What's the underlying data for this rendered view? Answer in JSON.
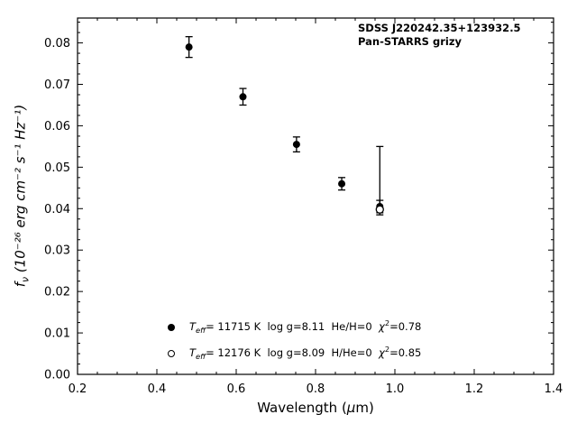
{
  "chart_data": {
    "type": "scatter",
    "title": "",
    "annotations": [
      "SDSS J220242.35+123932.5",
      "Pan-STARRS grizy"
    ],
    "xlabel_parts": {
      "pre": "Wavelength (",
      "italic": "μ",
      "post": "m)"
    },
    "ylabel_parts": {
      "f": "f",
      "sub": "ν",
      "rest": " (10⁻²⁶ erg cm⁻² s⁻¹ Hz⁻¹)"
    },
    "xlim": [
      0.2,
      1.4
    ],
    "ylim": [
      0.0,
      0.086
    ],
    "x_ticks": [
      {
        "v": 0.2,
        "label": "0.2"
      },
      {
        "v": 0.4,
        "label": "0.4"
      },
      {
        "v": 0.6,
        "label": "0.6"
      },
      {
        "v": 0.8,
        "label": "0.8"
      },
      {
        "v": 1.0,
        "label": "1.0"
      },
      {
        "v": 1.2,
        "label": "1.2"
      },
      {
        "v": 1.4,
        "label": "1.4"
      }
    ],
    "y_ticks": [
      {
        "v": 0.0,
        "label": "0.00"
      },
      {
        "v": 0.01,
        "label": "0.01"
      },
      {
        "v": 0.02,
        "label": "0.02"
      },
      {
        "v": 0.03,
        "label": "0.03"
      },
      {
        "v": 0.04,
        "label": "0.04"
      },
      {
        "v": 0.05,
        "label": "0.05"
      },
      {
        "v": 0.06,
        "label": "0.06"
      },
      {
        "v": 0.07,
        "label": "0.07"
      },
      {
        "v": 0.08,
        "label": "0.08"
      }
    ],
    "x_minor_step": 0.05,
    "y_minor_step": 0.0025,
    "series": [
      {
        "name": "photometry-filled-model",
        "marker": "filled-circle",
        "points": [
          {
            "x": 0.481,
            "y": 0.079,
            "err_lo": 0.0025,
            "err_hi": 0.0025
          },
          {
            "x": 0.617,
            "y": 0.067,
            "err_lo": 0.002,
            "err_hi": 0.002
          },
          {
            "x": 0.752,
            "y": 0.0555,
            "err_lo": 0.0018,
            "err_hi": 0.0018
          },
          {
            "x": 0.866,
            "y": 0.046,
            "err_lo": 0.0015,
            "err_hi": 0.0015
          },
          {
            "x": 0.962,
            "y": 0.0405,
            "err_lo": 0.0015,
            "err_hi": 0.0015
          }
        ]
      },
      {
        "name": "photometry-open-model",
        "marker": "open-circle",
        "points": [
          {
            "x": 0.962,
            "y": 0.0398,
            "err_lo": 0.0013,
            "err_hi": 0.0152
          }
        ]
      }
    ],
    "legend": [
      {
        "marker": "filled-circle",
        "t": "T",
        "sub": "eff",
        "rest": "= 11715 K  log g=8.11  He/H=0  ",
        "chi": "χ",
        "sup": "2",
        "tail": "=0.78"
      },
      {
        "marker": "open-circle",
        "t": "T",
        "sub": "eff",
        "rest": "= 12176 K  log g=8.09  H/He=0  ",
        "chi": "χ",
        "sup": "2",
        "tail": "=0.85"
      }
    ],
    "colors": {
      "marker": "#000000",
      "axis": "#000000",
      "background": "#ffffff"
    }
  }
}
